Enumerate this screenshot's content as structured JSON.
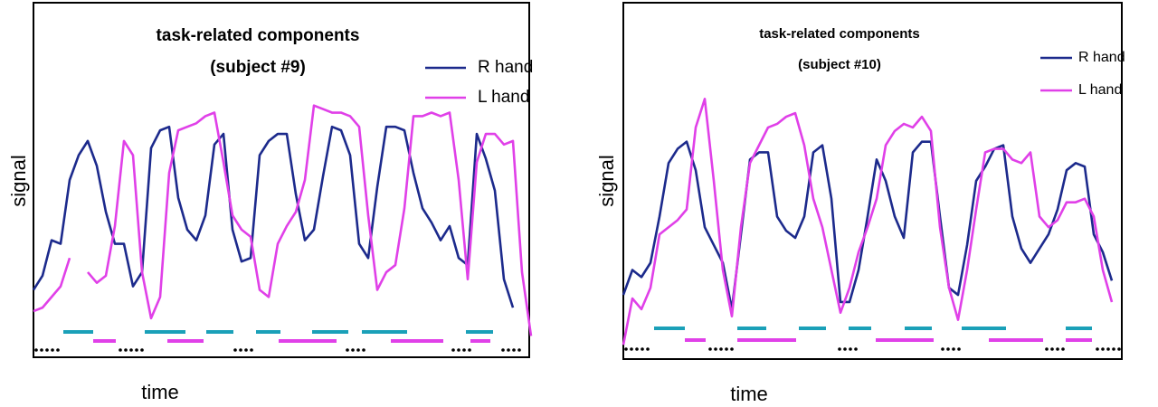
{
  "chart_data": [
    {
      "type": "line",
      "title": "task-related components",
      "subtitle": "(subject #9)",
      "xlabel": "time",
      "ylabel": "signal",
      "ylim": [
        0,
        100
      ],
      "series": [
        {
          "name": "R hand",
          "color": "#1c2a8c",
          "values": [
            19,
            23,
            33,
            32,
            50,
            57,
            61,
            54,
            41,
            32,
            32,
            20,
            24,
            59,
            64,
            65,
            45,
            36,
            33,
            40,
            60,
            63,
            36,
            27,
            28,
            57,
            61,
            63,
            63,
            46,
            33,
            36,
            51,
            65,
            64,
            57,
            32,
            28,
            48,
            65,
            65,
            64,
            52,
            42,
            38,
            33,
            37,
            28,
            26,
            63,
            56,
            47,
            22,
            14,
            null,
            null
          ]
        },
        {
          "name": "L hand",
          "color": "#e040e8",
          "values": [
            13,
            14,
            17,
            20,
            28,
            null,
            24,
            21,
            23,
            37,
            61,
            57,
            24,
            11,
            17,
            52,
            64,
            65,
            66,
            68,
            69,
            55,
            40,
            36,
            34,
            19,
            17,
            32,
            37,
            41,
            50,
            71,
            70,
            69,
            69,
            68,
            65,
            40,
            19,
            24,
            26,
            42,
            68,
            68,
            69,
            68,
            69,
            50,
            22,
            55,
            63,
            63,
            60,
            61,
            24,
            6
          ]
        }
      ]
    },
    {
      "type": "line",
      "title": "task-related components",
      "subtitle": "(subject #10)",
      "xlabel": "time",
      "ylabel": "signal",
      "ylim": [
        0,
        100
      ],
      "series": [
        {
          "name": "R hand",
          "color": "#1c2a8c",
          "values": [
            18,
            25,
            23,
            27,
            40,
            55,
            59,
            61,
            53,
            37,
            32,
            27,
            14,
            35,
            56,
            58,
            58,
            40,
            36,
            34,
            40,
            58,
            60,
            45,
            16,
            16,
            25,
            40,
            56,
            50,
            40,
            34,
            58,
            61,
            61,
            40,
            20,
            18,
            32,
            50,
            54,
            59,
            60,
            40,
            31,
            27,
            31,
            35,
            42,
            53,
            55,
            54,
            35,
            30,
            22
          ]
        },
        {
          "name": "L hand",
          "color": "#e040e8",
          "values": [
            4,
            17,
            14,
            20,
            35,
            37,
            39,
            42,
            65,
            73,
            50,
            25,
            12,
            37,
            55,
            60,
            65,
            66,
            68,
            69,
            60,
            45,
            37,
            25,
            13,
            20,
            30,
            37,
            45,
            60,
            64,
            66,
            65,
            68,
            64,
            37,
            20,
            11,
            25,
            42,
            58,
            59,
            59,
            56,
            55,
            58,
            40,
            37,
            39,
            44,
            44,
            45,
            40,
            25,
            16
          ]
        }
      ]
    }
  ]
}
